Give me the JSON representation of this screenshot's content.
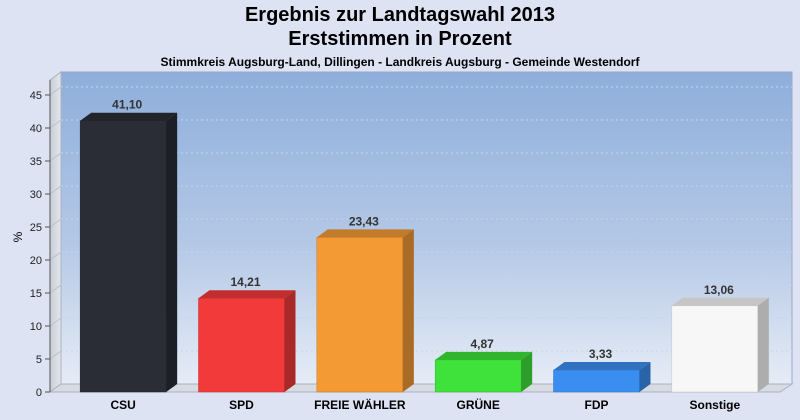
{
  "chart_data": {
    "type": "bar",
    "title": "Ergebnis zur Landtagswahl 2013",
    "subtitle": "Erststimmen in Prozent",
    "caption": "Stimmkreis Augsburg-Land, Dillingen - Landkreis Augsburg - Gemeinde Westendorf",
    "ylabel": "%",
    "ylim": [
      0,
      45
    ],
    "yticks": [
      0,
      5,
      10,
      15,
      20,
      25,
      30,
      35,
      40,
      45
    ],
    "grid": true,
    "categories": [
      "CSU",
      "SPD",
      "FREIE WÄHLER",
      "GRÜNE",
      "FDP",
      "Sonstige"
    ],
    "values": [
      41.1,
      14.21,
      23.43,
      4.87,
      3.33,
      13.06
    ],
    "value_labels": [
      "41,10",
      "14,21",
      "23,43",
      "4,87",
      "3,33",
      "13,06"
    ],
    "colors": [
      "#2a2d36",
      "#f23a3a",
      "#f39a35",
      "#3fe23a",
      "#3a8ef0",
      "#f7f7f7"
    ]
  }
}
